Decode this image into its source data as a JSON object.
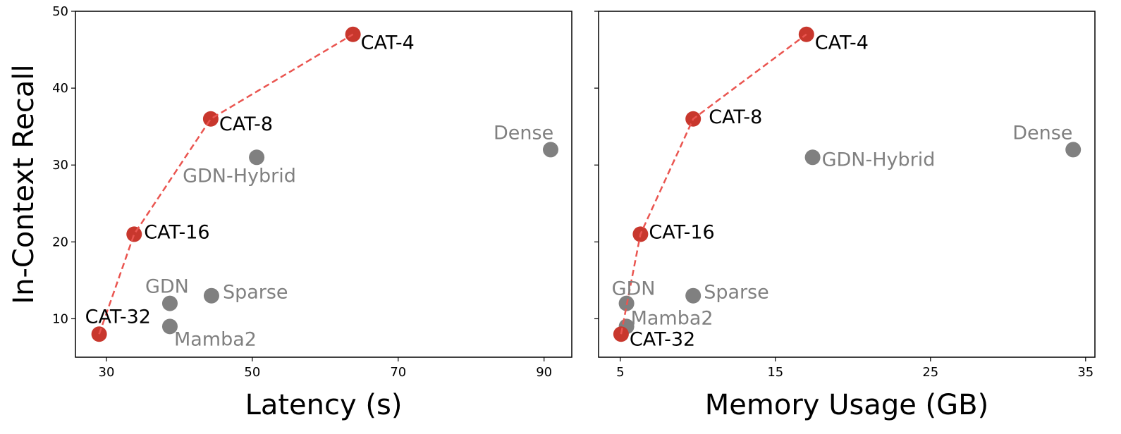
{
  "chart_data": [
    {
      "type": "scatter",
      "xlabel": "Latency (s)",
      "ylabel": "In-Context Recall",
      "xlim": [
        25.75,
        93.8
      ],
      "ylim": [
        5,
        50
      ],
      "xticks": [
        30,
        50,
        70,
        90
      ],
      "yticks": [
        10,
        20,
        30,
        40,
        50
      ],
      "grid": false,
      "colors": {
        "cat": "#c8372d",
        "other": "#808080",
        "line": "#ea5550",
        "cat_label": "#000000",
        "other_label": "#808080"
      },
      "points": [
        {
          "label": "CAT-32",
          "x": 29.0,
          "y": 8,
          "group": "cat"
        },
        {
          "label": "CAT-16",
          "x": 33.8,
          "y": 21,
          "group": "cat"
        },
        {
          "label": "CAT-8",
          "x": 44.3,
          "y": 36,
          "group": "cat"
        },
        {
          "label": "CAT-4",
          "x": 63.8,
          "y": 47,
          "group": "cat"
        },
        {
          "label": "GDN",
          "x": 38.7,
          "y": 12,
          "group": "other"
        },
        {
          "label": "Mamba2",
          "x": 38.7,
          "y": 9,
          "group": "other"
        },
        {
          "label": "Sparse",
          "x": 44.4,
          "y": 13,
          "group": "other"
        },
        {
          "label": "GDN-Hybrid",
          "x": 50.6,
          "y": 31,
          "group": "other"
        },
        {
          "label": "Dense",
          "x": 90.9,
          "y": 32,
          "group": "other"
        }
      ]
    },
    {
      "type": "scatter",
      "xlabel": "Memory Usage (GB)",
      "ylabel": "",
      "xlim": [
        3.6,
        35.6
      ],
      "ylim": [
        5,
        50
      ],
      "xticks": [
        5,
        15,
        25,
        35
      ],
      "yticks": [
        10,
        20,
        30,
        40,
        50
      ],
      "grid": false,
      "colors": {
        "cat": "#c8372d",
        "other": "#808080",
        "line": "#ea5550",
        "cat_label": "#000000",
        "other_label": "#808080"
      },
      "points": [
        {
          "label": "CAT-32",
          "x": 5.05,
          "y": 8,
          "group": "cat"
        },
        {
          "label": "CAT-16",
          "x": 6.3,
          "y": 21,
          "group": "cat"
        },
        {
          "label": "CAT-8",
          "x": 9.7,
          "y": 36,
          "group": "cat"
        },
        {
          "label": "CAT-4",
          "x": 17.0,
          "y": 47,
          "group": "cat"
        },
        {
          "label": "GDN",
          "x": 5.4,
          "y": 12,
          "group": "other"
        },
        {
          "label": "Mamba2",
          "x": 5.4,
          "y": 9,
          "group": "other"
        },
        {
          "label": "Sparse",
          "x": 9.7,
          "y": 13,
          "group": "other"
        },
        {
          "label": "GDN-Hybrid",
          "x": 17.4,
          "y": 31,
          "group": "other"
        },
        {
          "label": "Dense",
          "x": 34.2,
          "y": 32,
          "group": "other"
        }
      ]
    }
  ]
}
